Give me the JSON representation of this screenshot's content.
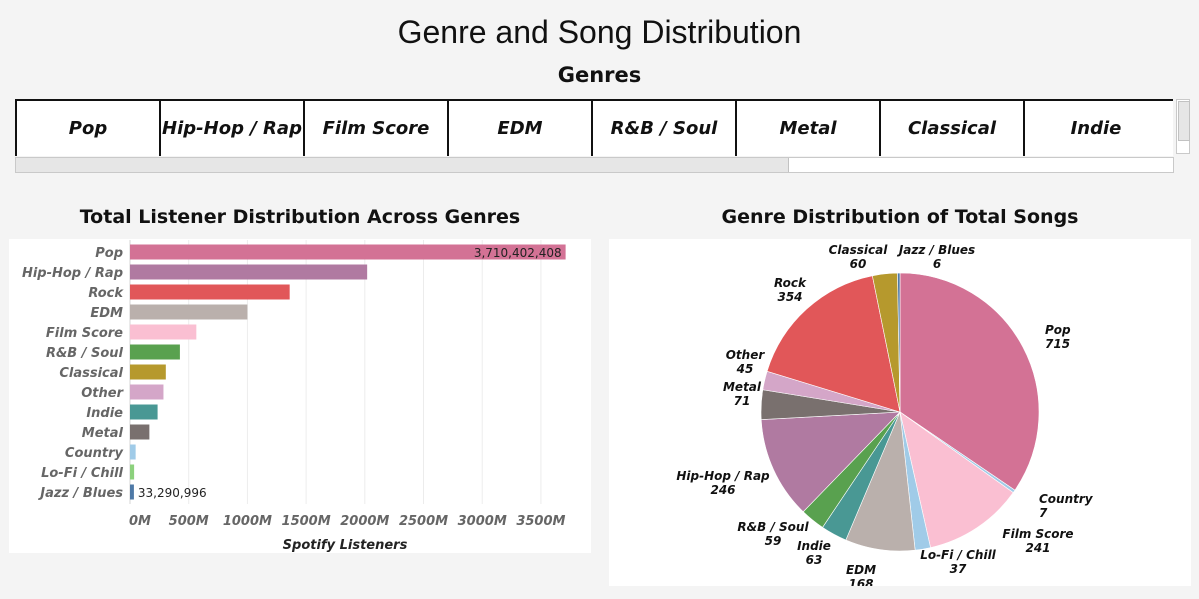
{
  "page": {
    "title": "Genre and Song Distribution"
  },
  "genres_filter": {
    "title": "Genres",
    "items": [
      "Pop",
      "Hip-Hop / Rap",
      "Film Score",
      "EDM",
      "R&B / Soul",
      "Metal",
      "Classical",
      "Indie"
    ]
  },
  "chart_data": [
    {
      "type": "bar",
      "orientation": "horizontal",
      "title": "Total Listener Distribution Across Genres",
      "xlabel": "Spotify Listeners",
      "ylabel": "",
      "xlim": [
        0,
        3850000000
      ],
      "xticks": [
        0,
        500000000,
        1000000000,
        1500000000,
        2000000000,
        2500000000,
        3000000000,
        3500000000
      ],
      "xtick_labels": [
        "0M",
        "500M",
        "1000M",
        "1500M",
        "2000M",
        "2500M",
        "3000M",
        "3500M"
      ],
      "grid": true,
      "categories": [
        "Pop",
        "Hip-Hop / Rap",
        "Rock",
        "EDM",
        "Film Score",
        "R&B / Soul",
        "Classical",
        "Other",
        "Indie",
        "Metal",
        "Country",
        "Lo-Fi / Chill",
        "Jazz / Blues"
      ],
      "values": [
        3710402408,
        2020000000,
        1360000000,
        1000000000,
        565000000,
        425000000,
        305000000,
        285000000,
        235000000,
        165000000,
        48000000,
        35000000,
        33290996
      ],
      "data_labels": {
        "Pop": "3,710,402,408",
        "Jazz / Blues": "33,290,996"
      },
      "colors": [
        "#d37295",
        "#b07aa1",
        "#e15759",
        "#bab0ac",
        "#fabfd2",
        "#59a14f",
        "#b6992d",
        "#d4a6c8",
        "#499894",
        "#79706e",
        "#a0cbe8",
        "#8cd17d",
        "#4e79a7"
      ]
    },
    {
      "type": "pie",
      "title": "Genre Distribution of Total Songs",
      "categories": [
        "Pop",
        "Country",
        "Film Score",
        "Lo-Fi / Chill",
        "EDM",
        "Indie",
        "R&B / Soul",
        "Hip-Hop / Rap",
        "Metal",
        "Other",
        "Rock",
        "Classical",
        "Jazz / Blues"
      ],
      "values": [
        715,
        7,
        241,
        37,
        168,
        63,
        59,
        246,
        71,
        45,
        354,
        60,
        6
      ],
      "colors": [
        "#d37295",
        "#a0cbe8",
        "#fabfd2",
        "#a0cbe8",
        "#bab0ac",
        "#499894",
        "#59a14f",
        "#b07aa1",
        "#79706e",
        "#d4a6c8",
        "#e15759",
        "#b6992d",
        "#4e79a7"
      ]
    }
  ]
}
